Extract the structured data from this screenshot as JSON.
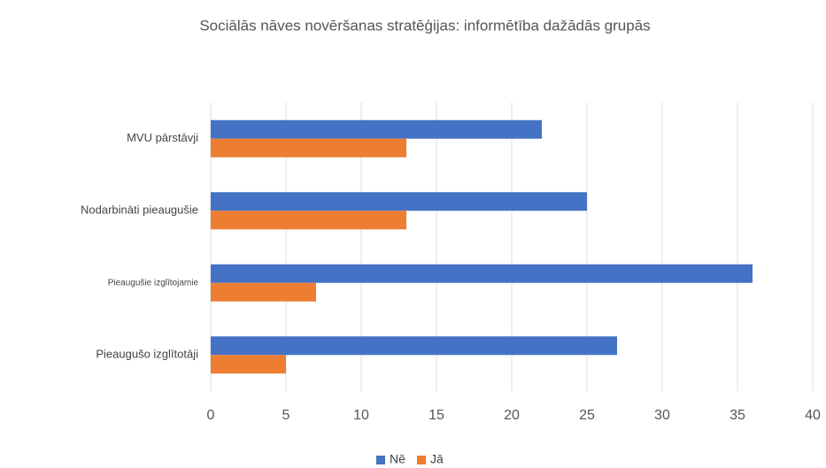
{
  "chart_data": {
    "type": "bar",
    "orientation": "horizontal",
    "title": "Sociālās nāves novēršanas stratēģijas: informētība dažādās grupās",
    "categories": [
      "MVU pārstāvji",
      "Nodarbināti pieaugušie",
      "Pieaugušie izglītojamie",
      "Pieaugušo izglītotāji"
    ],
    "series": [
      {
        "name": "Nē",
        "color": "#4472c4",
        "values": [
          22,
          25,
          36,
          27
        ]
      },
      {
        "name": "Jā",
        "color": "#ed7d31",
        "values": [
          13,
          13,
          7,
          5
        ]
      }
    ],
    "xlim": [
      0,
      40
    ],
    "xticks": [
      0,
      5,
      10,
      15,
      20,
      25,
      30,
      35,
      40
    ],
    "grid": true,
    "legend": "bottom"
  }
}
